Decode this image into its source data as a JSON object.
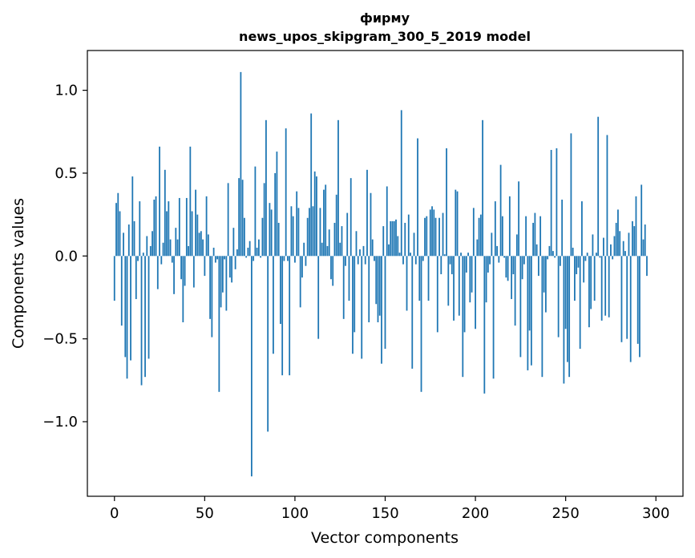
{
  "chart_data": {
    "type": "bar",
    "title": "фирму",
    "subtitle": "news_upos_skipgram_300_5_2019 model",
    "xlabel": "Vector components",
    "ylabel": "Components values",
    "xlim": [
      -15,
      315
    ],
    "ylim": [
      -1.45,
      1.24
    ],
    "xticks": [
      {
        "value": 0,
        "label": "0"
      },
      {
        "value": 50,
        "label": "50"
      },
      {
        "value": 100,
        "label": "100"
      },
      {
        "value": 150,
        "label": "150"
      },
      {
        "value": 200,
        "label": "200"
      },
      {
        "value": 250,
        "label": "250"
      },
      {
        "value": 300,
        "label": "300"
      }
    ],
    "yticks": [
      {
        "value": -1.0,
        "label": "−1.0"
      },
      {
        "value": -0.5,
        "label": "−0.5"
      },
      {
        "value": 0.0,
        "label": "0.0"
      },
      {
        "value": 0.5,
        "label": "0.5"
      },
      {
        "value": 1.0,
        "label": "1.0"
      }
    ],
    "bar_color": "#1f77b4",
    "grid": false,
    "values": [
      -0.27,
      0.32,
      0.38,
      0.27,
      -0.42,
      0.14,
      -0.61,
      -0.74,
      0.19,
      -0.63,
      0.48,
      0.21,
      -0.26,
      -0.03,
      0.33,
      -0.78,
      0.02,
      -0.73,
      0.12,
      -0.62,
      0.06,
      0.15,
      0.34,
      0.36,
      -0.2,
      0.66,
      -0.05,
      0.08,
      0.52,
      0.27,
      0.33,
      0.1,
      -0.04,
      -0.23,
      0.17,
      0.1,
      0.35,
      -0.14,
      -0.4,
      -0.18,
      0.35,
      0.06,
      0.66,
      0.27,
      -0.19,
      0.4,
      0.25,
      0.14,
      0.15,
      0.1,
      -0.12,
      0.36,
      0.13,
      -0.38,
      -0.49,
      0.05,
      -0.04,
      -0.02,
      -0.82,
      -0.31,
      -0.22,
      -0.02,
      -0.33,
      0.44,
      -0.13,
      -0.16,
      0.17,
      -0.08,
      0.04,
      0.47,
      1.11,
      0.46,
      0.23,
      -0.01,
      0.05,
      0.09,
      -1.33,
      -0.03,
      0.54,
      0.05,
      0.1,
      -0.01,
      0.23,
      0.44,
      0.82,
      -1.06,
      0.32,
      0.28,
      -0.59,
      0.5,
      0.63,
      0.2,
      -0.41,
      -0.72,
      -0.03,
      0.77,
      -0.03,
      -0.72,
      0.3,
      0.24,
      -0.04,
      0.39,
      0.29,
      -0.31,
      -0.13,
      0.08,
      -0.06,
      0.23,
      0.29,
      0.86,
      0.3,
      0.51,
      0.48,
      -0.5,
      0.29,
      0.08,
      0.4,
      0.43,
      0.06,
      0.16,
      -0.14,
      -0.18,
      0.2,
      0.37,
      0.82,
      0.08,
      0.18,
      -0.38,
      -0.06,
      0.26,
      -0.27,
      0.47,
      -0.59,
      -0.46,
      0.15,
      -0.05,
      0.04,
      -0.62,
      0.06,
      -0.05,
      0.52,
      -0.4,
      0.38,
      0.1,
      -0.03,
      -0.29,
      -0.4,
      -0.36,
      -0.65,
      0.18,
      -0.56,
      0.42,
      0.07,
      0.21,
      0.21,
      0.21,
      0.22,
      0.12,
      0.02,
      0.88,
      -0.05,
      0.2,
      -0.33,
      0.25,
      0.02,
      -0.68,
      0.14,
      -0.05,
      0.71,
      -0.27,
      -0.82,
      -0.03,
      0.23,
      0.24,
      -0.27,
      0.28,
      0.3,
      0.28,
      0.23,
      -0.46,
      0.23,
      -0.11,
      0.26,
      0.01,
      0.65,
      -0.3,
      -0.05,
      -0.11,
      -0.39,
      0.4,
      0.39,
      -0.36,
      0.02,
      -0.73,
      -0.46,
      -0.1,
      0.02,
      -0.28,
      -0.22,
      0.29,
      -0.44,
      0.1,
      0.23,
      0.25,
      0.82,
      -0.83,
      -0.28,
      -0.1,
      -0.05,
      0.14,
      -0.74,
      0.33,
      0.06,
      -0.04,
      0.55,
      0.24,
      -0.01,
      -0.13,
      -0.15,
      0.36,
      -0.26,
      -0.11,
      -0.42,
      0.13,
      0.45,
      -0.61,
      -0.14,
      -0.05,
      0.24,
      -0.69,
      -0.45,
      -0.66,
      0.2,
      0.26,
      0.07,
      -0.12,
      0.24,
      -0.73,
      -0.22,
      -0.34,
      -0.02,
      0.06,
      0.64,
      0.03,
      -0.01,
      0.65,
      -0.49,
      -0.06,
      0.34,
      -0.77,
      -0.44,
      -0.64,
      -0.73,
      0.74,
      0.05,
      -0.27,
      -0.11,
      -0.07,
      -0.56,
      0.33,
      -0.16,
      -0.03,
      0.02,
      -0.43,
      -0.32,
      0.13,
      -0.27,
      0.02,
      0.84,
      -0.01,
      -0.39,
      0.11,
      -0.36,
      0.73,
      -0.37,
      0.07,
      -0.02,
      0.12,
      0.2,
      0.28,
      0.15,
      -0.52,
      0.09,
      0.03,
      -0.5,
      0.14,
      -0.64,
      0.21,
      0.18,
      0.36,
      -0.53,
      -0.61,
      0.43,
      0.1,
      0.19,
      -0.12
    ]
  }
}
